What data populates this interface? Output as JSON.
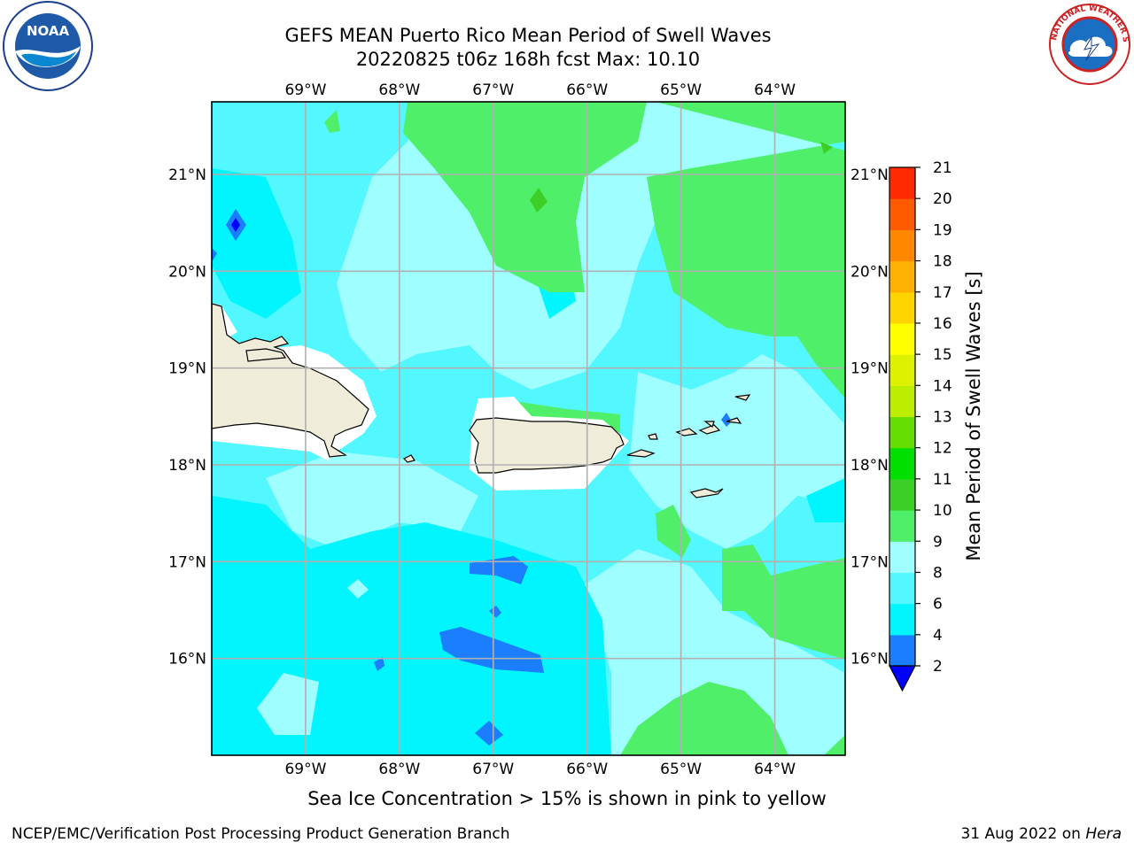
{
  "title_line1": "GEFS MEAN Puerto Rico Mean Period of Swell Waves",
  "title_line2": "20220825 t06z 168h fcst   Max: 10.10",
  "logos": {
    "left": {
      "icon": "noaa-logo",
      "text": "NOAA",
      "ring": "NATIONAL OCEANIC AND ATMOSPHERIC ADMINISTRATION · U.S. DEPARTMENT OF COMMERCE"
    },
    "right": {
      "icon": "nws-logo",
      "ring": "NATIONAL WEATHER SERVICE"
    }
  },
  "map": {
    "lon_labels": [
      "69°W",
      "68°W",
      "67°W",
      "66°W",
      "65°W",
      "64°W"
    ],
    "lat_labels": [
      "21°N",
      "20°N",
      "19°N",
      "18°N",
      "17°N",
      "16°N"
    ],
    "lon_range": [
      -70.0,
      -63.25
    ],
    "lat_range": [
      15.0,
      21.75
    ],
    "grid": true,
    "land_color": "#efecd9"
  },
  "colorbar": {
    "label": "Mean Period of Swell Waves [s]",
    "ticks": [
      "21",
      "20",
      "19",
      "18",
      "17",
      "16",
      "15",
      "14",
      "13",
      "12",
      "11",
      "10",
      "9",
      "8",
      "6",
      "4",
      "2"
    ],
    "bounds": [
      2,
      4,
      6,
      8,
      9,
      10,
      11,
      12,
      13,
      14,
      15,
      16,
      17,
      18,
      19,
      20,
      21
    ],
    "colors": [
      "#0000ff",
      "#1a7eff",
      "#00f5ff",
      "#52f7ff",
      "#9ffeff",
      "#50ef6a",
      "#3ccf28",
      "#00e000",
      "#66dd00",
      "#bbee00",
      "#ddf200",
      "#ffff00",
      "#ffd400",
      "#ffb000",
      "#ff8800",
      "#ff5a00",
      "#ff2a00",
      "#ff0000"
    ]
  },
  "note": "Sea Ice Concentration > 15% is shown in pink to yellow",
  "footer_left": "NCEP/EMC/Verification Post Processing Product Generation Branch",
  "footer_right_date": "31 Aug 2022 on ",
  "footer_right_host": "Hera"
}
